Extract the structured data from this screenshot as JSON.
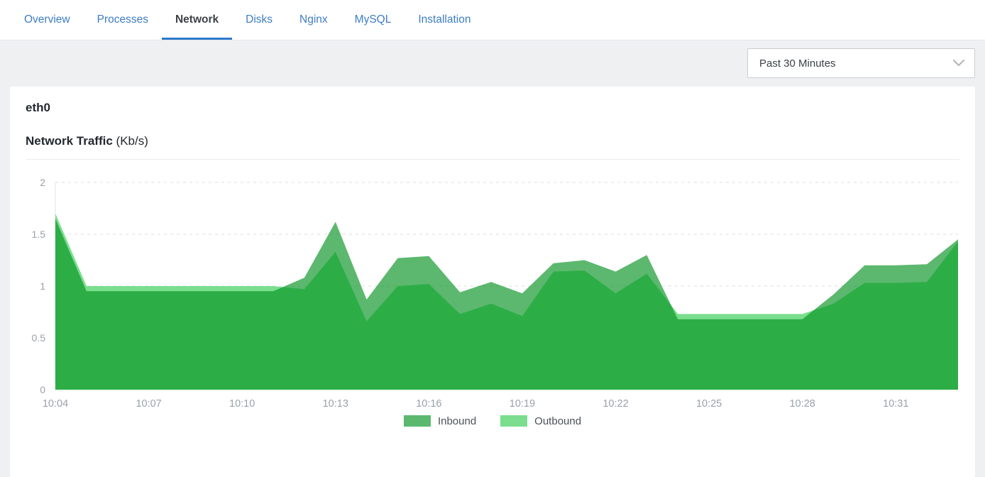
{
  "header": {
    "tabs": [
      {
        "label": "Overview",
        "active": false
      },
      {
        "label": "Processes",
        "active": false
      },
      {
        "label": "Network",
        "active": true
      },
      {
        "label": "Disks",
        "active": false
      },
      {
        "label": "Nginx",
        "active": false
      },
      {
        "label": "MySQL",
        "active": false
      },
      {
        "label": "Installation",
        "active": false
      }
    ],
    "active_tab_color": "#2e79cc",
    "tab_link_color": "#3d7dc2"
  },
  "toolbar": {
    "time_range_value": "Past 30 Minutes"
  },
  "panel": {
    "interface_title": "eth0",
    "chart_title": "Network Traffic",
    "chart_unit": "(Kb/s)"
  },
  "chart_data": {
    "type": "area",
    "title": "Network Traffic (Kb/s)",
    "xlabel": "",
    "ylabel": "",
    "ylim": [
      0,
      2
    ],
    "yticks": [
      0,
      0.5,
      1,
      1.5,
      2
    ],
    "grid": "dashed-horizontal",
    "legend_position": "bottom",
    "x_tick_step": 3,
    "x": [
      "10:04",
      "10:05",
      "10:06",
      "10:07",
      "10:08",
      "10:09",
      "10:10",
      "10:11",
      "10:12",
      "10:13",
      "10:14",
      "10:15",
      "10:16",
      "10:17",
      "10:18",
      "10:19",
      "10:20",
      "10:21",
      "10:22",
      "10:23",
      "10:24",
      "10:25",
      "10:26",
      "10:27",
      "10:28",
      "10:29",
      "10:30",
      "10:31",
      "10:32",
      "10:33"
    ],
    "x_tick_labels": [
      "10:04",
      "10:07",
      "10:10",
      "10:13",
      "10:16",
      "10:19",
      "10:22",
      "10:25",
      "10:28",
      "10:31"
    ],
    "series": [
      {
        "name": "Inbound",
        "color": "#5bb86e",
        "fill": "rgba(4,146,33,0.65)",
        "values": [
          1.65,
          0.95,
          0.95,
          0.95,
          0.95,
          0.95,
          0.95,
          0.95,
          1.08,
          1.62,
          0.87,
          1.27,
          1.29,
          0.94,
          1.04,
          0.93,
          1.22,
          1.25,
          1.14,
          1.3,
          0.68,
          0.68,
          0.68,
          0.68,
          0.68,
          0.92,
          1.2,
          1.2,
          1.21,
          1.45
        ]
      },
      {
        "name": "Outbound",
        "color": "#7ade8e",
        "fill": "#7ade8e",
        "values": [
          1.7,
          1.0,
          1.0,
          1.0,
          1.0,
          1.0,
          1.0,
          1.0,
          0.97,
          1.33,
          0.66,
          1.0,
          1.02,
          0.73,
          0.83,
          0.71,
          1.14,
          1.15,
          0.93,
          1.12,
          0.73,
          0.73,
          0.73,
          0.73,
          0.73,
          0.83,
          1.03,
          1.03,
          1.04,
          1.43
        ]
      }
    ],
    "axis_text_color": "#9ba1a9",
    "gridline_color": "#dcdee0",
    "axis_line_color": "#e4e6e8"
  }
}
